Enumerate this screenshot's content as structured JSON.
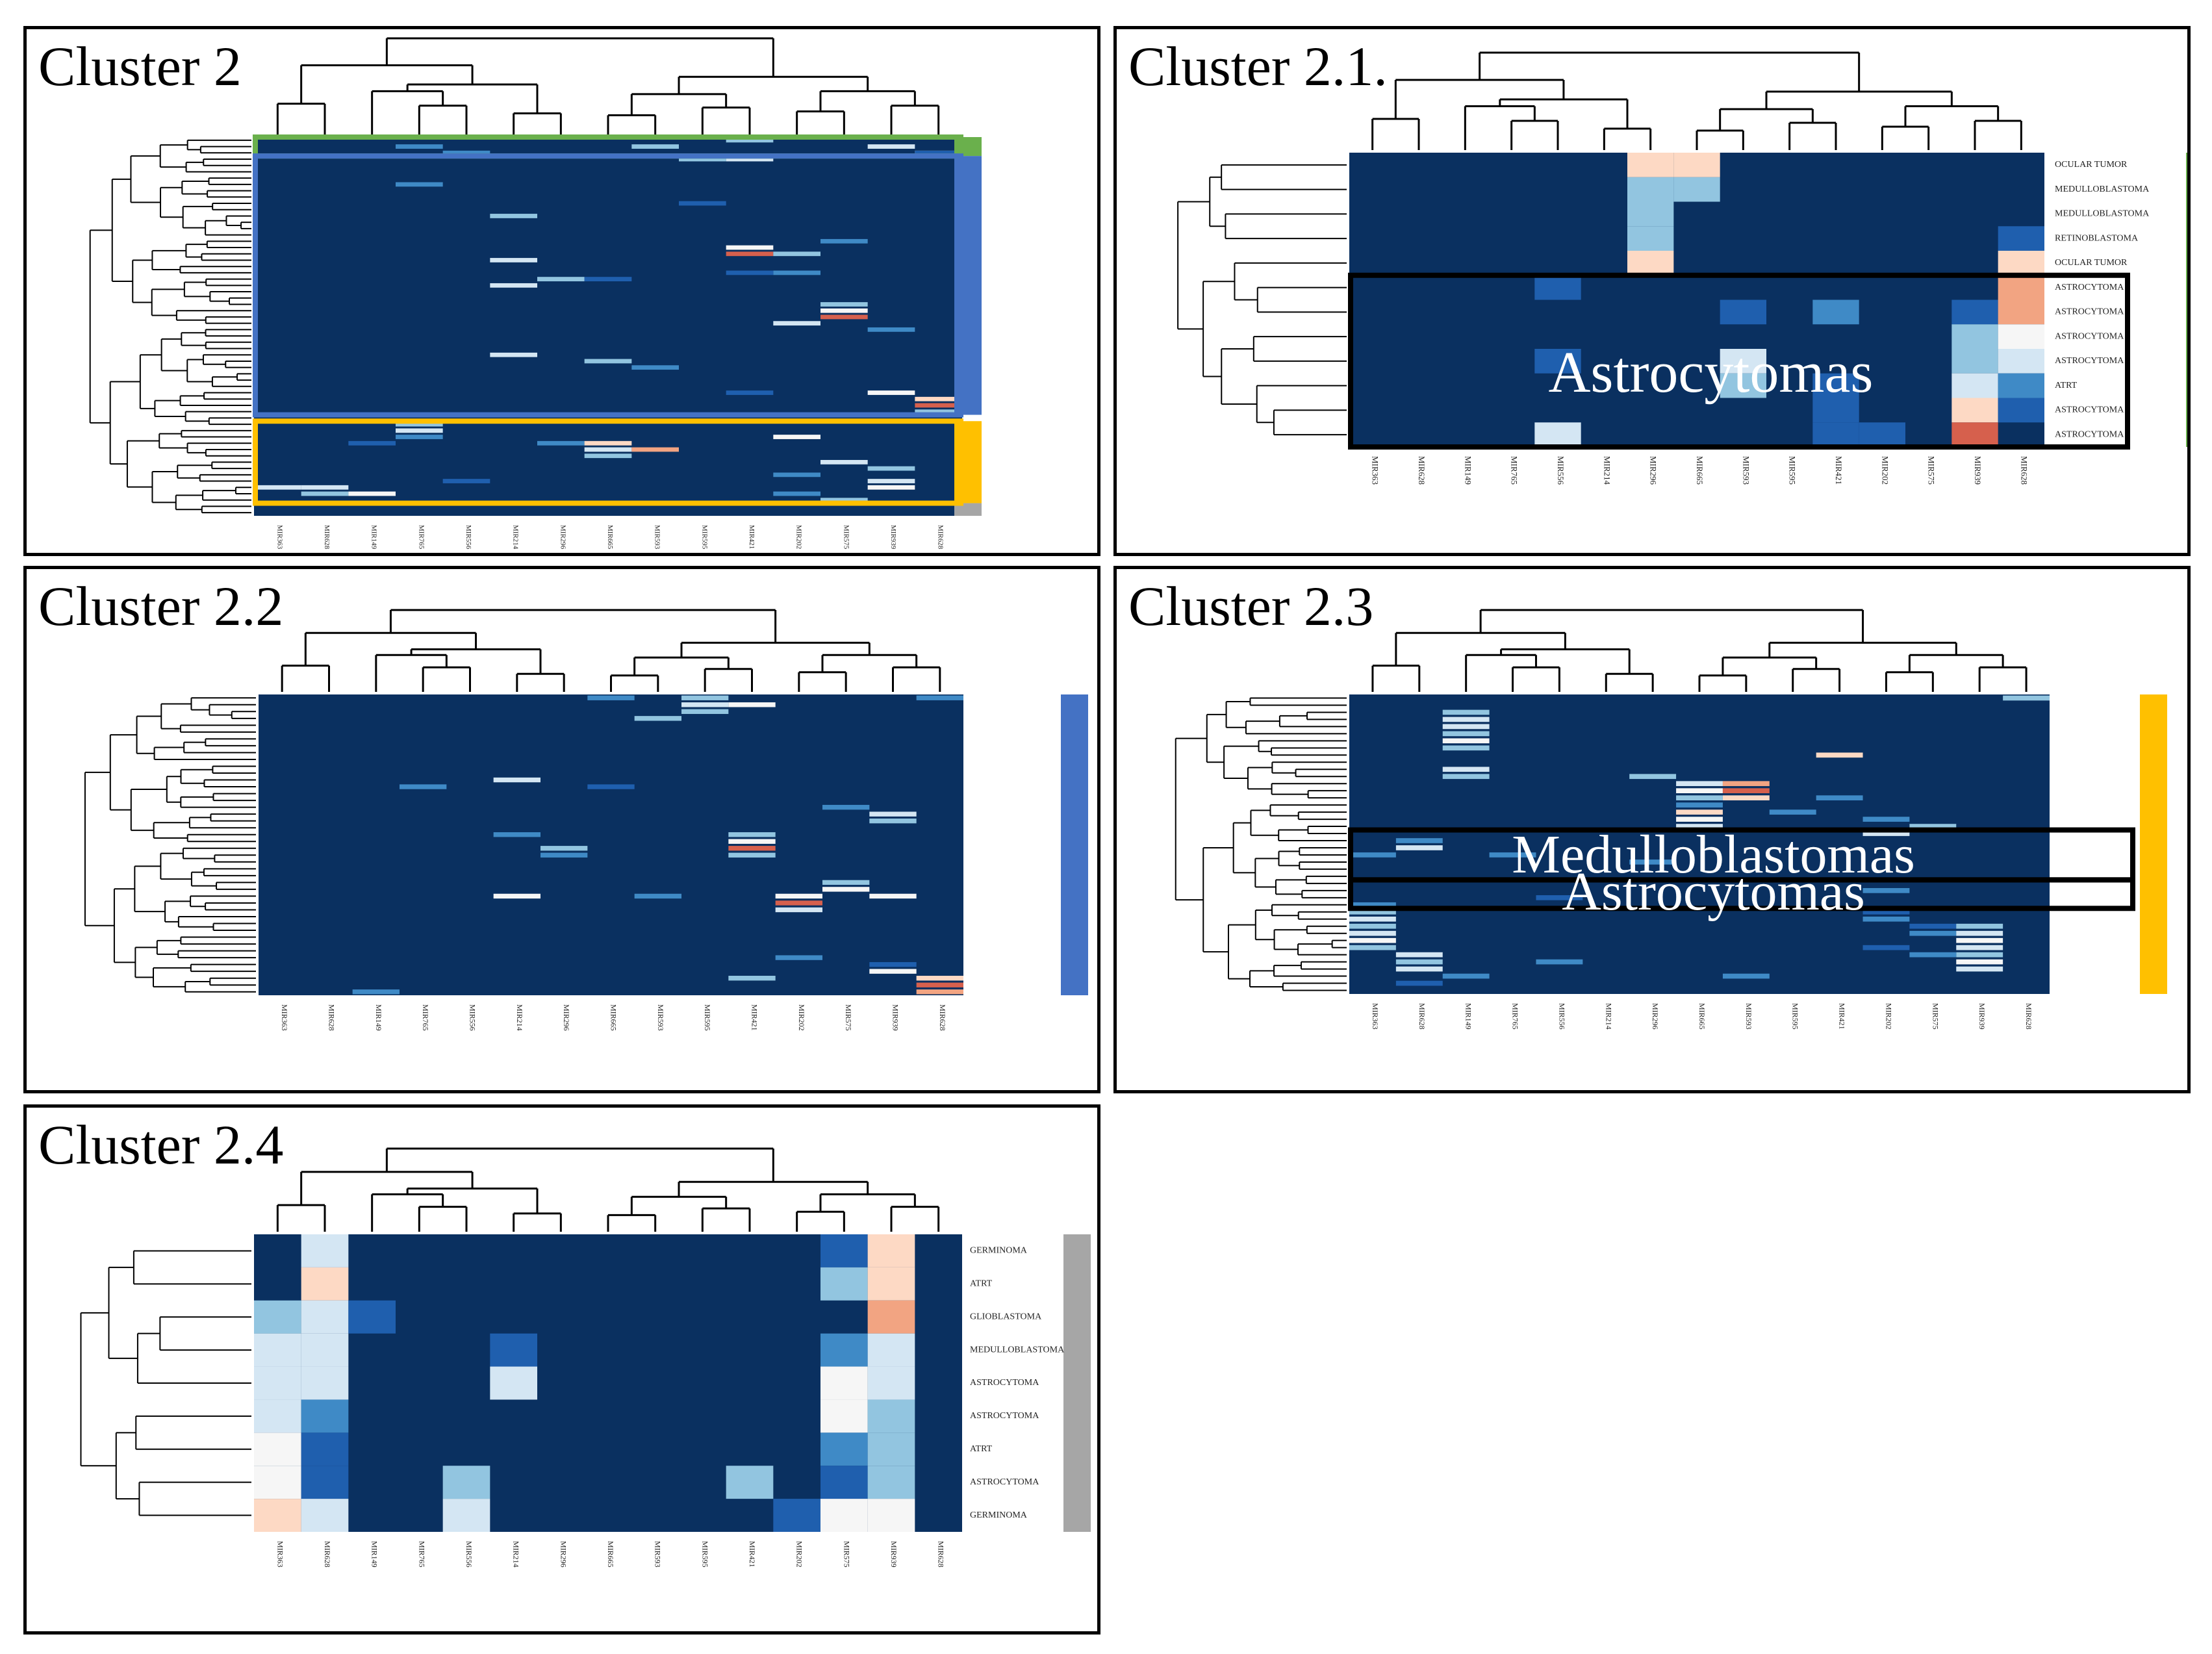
{
  "colors": {
    "heat_low": "#0a3060",
    "scale": [
      "#0a3060",
      "#1f5fae",
      "#3f8ac6",
      "#92c5e0",
      "#d4e6f3",
      "#f6f6f6",
      "#fdd9c4",
      "#f2a482",
      "#d6604d"
    ],
    "cluster_green": "#6ab04c",
    "cluster_blue": "#4472c4",
    "cluster_gold": "#ffc000",
    "cluster_gray": "#a6a6a6"
  },
  "chart_data": [
    {
      "type": "heatmap",
      "title": "Cluster 2",
      "columns": [
        "MIR363",
        "MIR628",
        "MIR149",
        "MIR765",
        "MIR556",
        "MIR214",
        "MIR296",
        "MIR665",
        "MIR593",
        "MIR595",
        "MIR421",
        "MIR202",
        "MIR575",
        "MIR939",
        "MIR628"
      ],
      "rows": [],
      "row_count": 60,
      "cluster_bar": [
        {
          "color": "cluster_green",
          "from": 0,
          "to": 3
        },
        {
          "color": "cluster_blue",
          "from": 3,
          "to": 44
        },
        {
          "color": "cluster_gold",
          "from": 45,
          "to": 58
        },
        {
          "color": "cluster_gray",
          "from": 58,
          "to": 60
        }
      ],
      "highlights": [
        {
          "label": "",
          "color": "cluster_green",
          "from": 0,
          "to": 3
        },
        {
          "label": "",
          "color": "cluster_blue",
          "from": 3,
          "to": 44
        },
        {
          "label": "",
          "color": "cluster_gold",
          "from": 45,
          "to": 58
        }
      ],
      "cells": [
        [
          1,
          3,
          2
        ],
        [
          1,
          8,
          3
        ],
        [
          1,
          13,
          4
        ],
        [
          2,
          14,
          6
        ],
        [
          2,
          14,
          1
        ],
        [
          0,
          10,
          3
        ],
        [
          2,
          4,
          2
        ],
        [
          3,
          10,
          4
        ],
        [
          3,
          9,
          3
        ],
        [
          7,
          3,
          2
        ],
        [
          12,
          5,
          3
        ],
        [
          10,
          9,
          1
        ],
        [
          19,
          5,
          4
        ],
        [
          17,
          10,
          5
        ],
        [
          18,
          10,
          8
        ],
        [
          18,
          11,
          3
        ],
        [
          16,
          12,
          2
        ],
        [
          21,
          11,
          2
        ],
        [
          21,
          10,
          1
        ],
        [
          23,
          5,
          4
        ],
        [
          22,
          6,
          3
        ],
        [
          22,
          7,
          1
        ],
        [
          26,
          12,
          3
        ],
        [
          27,
          12,
          5
        ],
        [
          28,
          12,
          8
        ],
        [
          29,
          11,
          4
        ],
        [
          30,
          13,
          2
        ],
        [
          36,
          8,
          2
        ],
        [
          40,
          13,
          5
        ],
        [
          41,
          14,
          6
        ],
        [
          42,
          14,
          8
        ],
        [
          43,
          14,
          3
        ],
        [
          40,
          10,
          1
        ],
        [
          34,
          5,
          4
        ],
        [
          35,
          7,
          3
        ],
        [
          45,
          3,
          3
        ],
        [
          46,
          3,
          4
        ],
        [
          47,
          3,
          2
        ],
        [
          48,
          2,
          1
        ],
        [
          47,
          11,
          5
        ],
        [
          48,
          6,
          2
        ],
        [
          48,
          7,
          6
        ],
        [
          49,
          7,
          4
        ],
        [
          50,
          7,
          3
        ],
        [
          49,
          8,
          7
        ],
        [
          51,
          12,
          4
        ],
        [
          52,
          13,
          3
        ],
        [
          53,
          11,
          2
        ],
        [
          54,
          13,
          4
        ],
        [
          55,
          13,
          5
        ],
        [
          55,
          1,
          4
        ],
        [
          56,
          1,
          3
        ],
        [
          56,
          2,
          5
        ],
        [
          55,
          0,
          4
        ],
        [
          57,
          12,
          3
        ],
        [
          56,
          11,
          2
        ],
        [
          54,
          4,
          1
        ]
      ]
    },
    {
      "type": "heatmap",
      "title": "Cluster 2.1.",
      "columns": [
        "MIR363",
        "MIR628",
        "MIR149",
        "MIR765",
        "MIR556",
        "MIR214",
        "MIR296",
        "MIR665",
        "MIR593",
        "MIR595",
        "MIR421",
        "MIR202",
        "MIR575",
        "MIR939",
        "MIR628"
      ],
      "rows": [
        "OCULAR TUMOR",
        "MEDULLOBLASTOMA",
        "MEDULLOBLASTOMA",
        "RETINOBLASTOMA",
        "OCULAR TUMOR",
        "ASTROCYTOMA",
        "ASTROCYTOMA",
        "ASTROCYTOMA",
        "ASTROCYTOMA",
        "ATRT",
        "ASTROCYTOMA",
        "ASTROCYTOMA"
      ],
      "row_count": 12,
      "cluster_bar": [
        {
          "color": "cluster_green",
          "from": 0,
          "to": 12
        }
      ],
      "highlights": [
        {
          "label": "Astrocytomas",
          "color": "#000000",
          "from": 5,
          "to": 12
        }
      ],
      "cells": [
        [
          0,
          6,
          6
        ],
        [
          0,
          7,
          6
        ],
        [
          1,
          6,
          3
        ],
        [
          1,
          7,
          3
        ],
        [
          2,
          6,
          3
        ],
        [
          3,
          6,
          3
        ],
        [
          4,
          6,
          6
        ],
        [
          3,
          14,
          1
        ],
        [
          4,
          14,
          6
        ],
        [
          5,
          4,
          1
        ],
        [
          5,
          14,
          7
        ],
        [
          6,
          8,
          1
        ],
        [
          6,
          10,
          2
        ],
        [
          6,
          13,
          1
        ],
        [
          6,
          14,
          7
        ],
        [
          7,
          13,
          3
        ],
        [
          7,
          14,
          5
        ],
        [
          8,
          4,
          1
        ],
        [
          8,
          8,
          4
        ],
        [
          8,
          13,
          3
        ],
        [
          8,
          14,
          4
        ],
        [
          9,
          8,
          3
        ],
        [
          9,
          10,
          1
        ],
        [
          9,
          13,
          4
        ],
        [
          9,
          14,
          2
        ],
        [
          10,
          10,
          1
        ],
        [
          10,
          13,
          6
        ],
        [
          10,
          14,
          1
        ],
        [
          11,
          4,
          4
        ],
        [
          11,
          10,
          1
        ],
        [
          11,
          11,
          1
        ],
        [
          11,
          13,
          8
        ]
      ]
    },
    {
      "type": "heatmap",
      "title": "Cluster 2.2",
      "columns": [
        "MIR363",
        "MIR628",
        "MIR149",
        "MIR765",
        "MIR556",
        "MIR214",
        "MIR296",
        "MIR665",
        "MIR593",
        "MIR595",
        "MIR421",
        "MIR202",
        "MIR575",
        "MIR939",
        "MIR628"
      ],
      "rows": [],
      "row_count": 44,
      "cluster_bar": [
        {
          "color": "cluster_blue",
          "from": 0,
          "to": 44
        }
      ],
      "highlights": [],
      "cells": [
        [
          0,
          7,
          2
        ],
        [
          0,
          9,
          3
        ],
        [
          1,
          9,
          4
        ],
        [
          1,
          10,
          5
        ],
        [
          2,
          9,
          3
        ],
        [
          3,
          8,
          3
        ],
        [
          0,
          14,
          2
        ],
        [
          13,
          3,
          2
        ],
        [
          12,
          5,
          4
        ],
        [
          13,
          7,
          1
        ],
        [
          16,
          12,
          2
        ],
        [
          17,
          13,
          4
        ],
        [
          18,
          13,
          3
        ],
        [
          20,
          10,
          3
        ],
        [
          21,
          10,
          5
        ],
        [
          22,
          10,
          8
        ],
        [
          23,
          10,
          3
        ],
        [
          20,
          5,
          2
        ],
        [
          22,
          6,
          3
        ],
        [
          23,
          6,
          2
        ],
        [
          27,
          12,
          3
        ],
        [
          28,
          12,
          5
        ],
        [
          29,
          11,
          5
        ],
        [
          30,
          11,
          8
        ],
        [
          31,
          11,
          4
        ],
        [
          29,
          13,
          5
        ],
        [
          29,
          5,
          5
        ],
        [
          29,
          8,
          2
        ],
        [
          39,
          13,
          1
        ],
        [
          40,
          13,
          5
        ],
        [
          41,
          14,
          6
        ],
        [
          42,
          14,
          8
        ],
        [
          43,
          14,
          7
        ],
        [
          41,
          10,
          3
        ],
        [
          43,
          2,
          2
        ],
        [
          38,
          11,
          2
        ]
      ]
    },
    {
      "type": "heatmap",
      "title": "Cluster 2.3",
      "columns": [
        "MIR363",
        "MIR628",
        "MIR149",
        "MIR765",
        "MIR556",
        "MIR214",
        "MIR296",
        "MIR665",
        "MIR593",
        "MIR595",
        "MIR421",
        "MIR202",
        "MIR575",
        "MIR939",
        "MIR628"
      ],
      "rows": [],
      "row_count": 42,
      "cluster_bar": [
        {
          "color": "cluster_gold",
          "from": 0,
          "to": 42
        }
      ],
      "highlights": [
        {
          "label": "Medulloblastomas",
          "color": "#000000",
          "from": 19,
          "to": 26
        },
        {
          "label": "Astrocytomas",
          "color": "#000000",
          "from": 26,
          "to": 30
        }
      ],
      "cells": [
        [
          2,
          2,
          3
        ],
        [
          3,
          2,
          4
        ],
        [
          4,
          2,
          4
        ],
        [
          5,
          2,
          3
        ],
        [
          6,
          2,
          5
        ],
        [
          7,
          2,
          3
        ],
        [
          10,
          2,
          4
        ],
        [
          11,
          2,
          3
        ],
        [
          0,
          14,
          3
        ],
        [
          8,
          10,
          6
        ],
        [
          11,
          6,
          3
        ],
        [
          12,
          7,
          4
        ],
        [
          13,
          7,
          5
        ],
        [
          12,
          8,
          7
        ],
        [
          13,
          8,
          8
        ],
        [
          14,
          8,
          6
        ],
        [
          14,
          7,
          3
        ],
        [
          15,
          7,
          2
        ],
        [
          16,
          7,
          6
        ],
        [
          17,
          7,
          5
        ],
        [
          18,
          7,
          4
        ],
        [
          14,
          10,
          2
        ],
        [
          16,
          9,
          2
        ],
        [
          17,
          11,
          2
        ],
        [
          18,
          12,
          3
        ],
        [
          19,
          11,
          4
        ],
        [
          20,
          1,
          2
        ],
        [
          21,
          1,
          4
        ],
        [
          22,
          0,
          2
        ],
        [
          22,
          3,
          2
        ],
        [
          23,
          6,
          2
        ],
        [
          27,
          11,
          2
        ],
        [
          28,
          4,
          1
        ],
        [
          29,
          0,
          2
        ],
        [
          30,
          0,
          3
        ],
        [
          31,
          0,
          4
        ],
        [
          32,
          0,
          3
        ],
        [
          33,
          0,
          4
        ],
        [
          34,
          0,
          5
        ],
        [
          35,
          0,
          3
        ],
        [
          36,
          1,
          4
        ],
        [
          37,
          1,
          3
        ],
        [
          38,
          1,
          4
        ],
        [
          30,
          11,
          1
        ],
        [
          31,
          11,
          2
        ],
        [
          32,
          12,
          1
        ],
        [
          33,
          12,
          2
        ],
        [
          32,
          13,
          3
        ],
        [
          33,
          13,
          4
        ],
        [
          34,
          13,
          5
        ],
        [
          35,
          13,
          4
        ],
        [
          36,
          13,
          3
        ],
        [
          37,
          13,
          5
        ],
        [
          38,
          13,
          4
        ],
        [
          35,
          11,
          1
        ],
        [
          36,
          12,
          2
        ],
        [
          39,
          2,
          2
        ],
        [
          40,
          1,
          1
        ],
        [
          39,
          8,
          2
        ],
        [
          37,
          4,
          2
        ]
      ]
    },
    {
      "type": "heatmap",
      "title": "Cluster 2.4",
      "columns": [
        "MIR363",
        "MIR628",
        "MIR149",
        "MIR765",
        "MIR556",
        "MIR214",
        "MIR296",
        "MIR665",
        "MIR593",
        "MIR595",
        "MIR421",
        "MIR202",
        "MIR575",
        "MIR939",
        "MIR628"
      ],
      "rows": [
        "GERMINOMA",
        "ATRT",
        "GLIOBLASTOMA",
        "MEDULLOBLASTOMA",
        "ASTROCYTOMA",
        "ASTROCYTOMA",
        "ATRT",
        "ASTROCYTOMA",
        "GERMINOMA"
      ],
      "row_count": 9,
      "cluster_bar": [
        {
          "color": "cluster_gray",
          "from": 0,
          "to": 9
        }
      ],
      "highlights": [],
      "cells": [
        [
          0,
          1,
          4
        ],
        [
          0,
          12,
          1
        ],
        [
          0,
          13,
          6
        ],
        [
          1,
          1,
          6
        ],
        [
          1,
          12,
          3
        ],
        [
          1,
          13,
          6
        ],
        [
          2,
          0,
          3
        ],
        [
          2,
          1,
          4
        ],
        [
          2,
          2,
          1
        ],
        [
          2,
          13,
          7
        ],
        [
          3,
          0,
          4
        ],
        [
          3,
          1,
          4
        ],
        [
          3,
          5,
          1
        ],
        [
          3,
          12,
          2
        ],
        [
          3,
          13,
          4
        ],
        [
          4,
          0,
          4
        ],
        [
          4,
          1,
          4
        ],
        [
          4,
          5,
          4
        ],
        [
          4,
          12,
          5
        ],
        [
          4,
          13,
          4
        ],
        [
          5,
          0,
          4
        ],
        [
          5,
          1,
          2
        ],
        [
          5,
          12,
          5
        ],
        [
          5,
          13,
          3
        ],
        [
          6,
          0,
          5
        ],
        [
          6,
          1,
          1
        ],
        [
          6,
          12,
          2
        ],
        [
          6,
          13,
          3
        ],
        [
          7,
          0,
          5
        ],
        [
          7,
          1,
          1
        ],
        [
          7,
          4,
          3
        ],
        [
          7,
          10,
          3
        ],
        [
          7,
          12,
          1
        ],
        [
          7,
          13,
          3
        ],
        [
          8,
          0,
          6
        ],
        [
          8,
          1,
          4
        ],
        [
          8,
          4,
          4
        ],
        [
          8,
          11,
          1
        ],
        [
          8,
          12,
          5
        ],
        [
          8,
          13,
          5
        ]
      ]
    }
  ]
}
